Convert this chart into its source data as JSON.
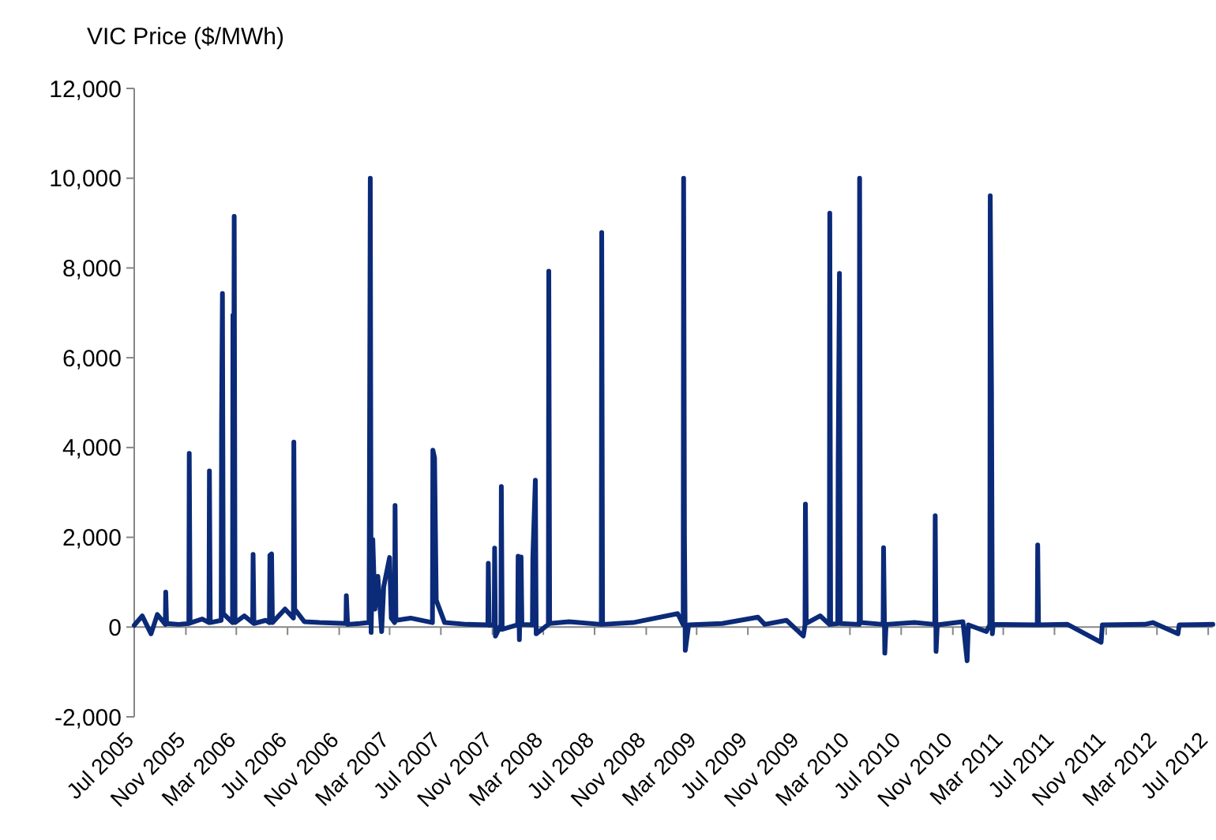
{
  "chart_data": {
    "type": "line",
    "ylabel": "VIC Price ($/MWh)",
    "xlim": [
      "2005-07-01",
      "2012-07-12"
    ],
    "xticks": [
      {
        "value": "2005-07",
        "label": "Jul 2005"
      },
      {
        "value": "2005-11",
        "label": "Nov 2005"
      },
      {
        "value": "2006-03",
        "label": "Mar 2006"
      },
      {
        "value": "2006-07",
        "label": "Jul 2006"
      },
      {
        "value": "2006-11",
        "label": "Nov 2006"
      },
      {
        "value": "2007-03",
        "label": "Mar 2007"
      },
      {
        "value": "2007-07",
        "label": "Jul 2007"
      },
      {
        "value": "2007-11",
        "label": "Nov 2007"
      },
      {
        "value": "2008-03",
        "label": "Mar 2008"
      },
      {
        "value": "2008-07",
        "label": "Jul 2008"
      },
      {
        "value": "2008-11",
        "label": "Nov 2008"
      },
      {
        "value": "2009-03",
        "label": "Mar 2009"
      },
      {
        "value": "2009-07",
        "label": "Jul 2009"
      },
      {
        "value": "2009-11",
        "label": "Nov 2009"
      },
      {
        "value": "2010-03",
        "label": "Mar 2010"
      },
      {
        "value": "2010-07",
        "label": "Jul 2010"
      },
      {
        "value": "2010-11",
        "label": "Nov 2010"
      },
      {
        "value": "2011-03",
        "label": "Mar 2011"
      },
      {
        "value": "2011-07",
        "label": "Jul 2011"
      },
      {
        "value": "2011-11",
        "label": "Nov 2011"
      },
      {
        "value": "2012-03",
        "label": "Mar 2012"
      },
      {
        "value": "2012-07",
        "label": "Jul 2012"
      }
    ],
    "ylim": [
      -2000,
      12000
    ],
    "yticks": [
      {
        "value": -2000,
        "label": "-2,000"
      },
      0,
      {
        "value": 2000,
        "label": "2,000"
      },
      {
        "value": 4000,
        "label": "4,000"
      },
      {
        "value": 6000,
        "label": "6,000"
      },
      {
        "value": 8000,
        "label": "8,000"
      },
      {
        "value": 10000,
        "label": "10,000"
      },
      {
        "value": 12000,
        "label": "12,000"
      }
    ],
    "marker": "none",
    "line_style": "solid",
    "series": [
      {
        "color": "#0b2a78",
        "x": [
          "2005-07-01",
          "2005-07-20",
          "2005-08-10",
          "2005-08-25",
          "2005-09-13",
          "2005-09-14",
          "2005-09-16",
          "2005-10-15",
          "2005-11-08",
          "2005-11-09",
          "2005-11-11",
          "2005-12-10",
          "2005-12-26",
          "2005-12-27",
          "2005-12-29",
          "2006-01-24",
          "2006-01-25",
          "2006-01-27",
          "2006-01-29",
          "2006-02-20",
          "2006-02-21",
          "2006-02-22",
          "2006-02-24",
          "2006-02-26",
          "2006-03-20",
          "2006-04-09",
          "2006-04-10",
          "2006-04-12",
          "2006-05-10",
          "2006-05-19",
          "2006-05-20",
          "2006-05-24",
          "2006-05-26",
          "2006-06-25",
          "2006-07-15",
          "2006-07-16",
          "2006-07-18",
          "2006-08-10",
          "2006-09-15",
          "2006-11-17",
          "2006-11-18",
          "2006-11-21",
          "2006-12-20",
          "2007-01-11",
          "2007-01-12",
          "2007-01-14",
          "2007-01-16",
          "2007-01-20",
          "2007-01-25",
          "2007-02-01",
          "2007-02-10",
          "2007-02-15",
          "2007-03-01",
          "2007-03-05",
          "2007-03-13",
          "2007-03-14",
          "2007-03-16",
          "2007-04-20",
          "2007-06-11",
          "2007-06-12",
          "2007-06-16",
          "2007-06-20",
          "2007-07-10",
          "2007-09-01",
          "2007-10-21",
          "2007-10-22",
          "2007-10-24",
          "2007-11-05",
          "2007-11-06",
          "2007-11-08",
          "2007-11-21",
          "2007-11-22",
          "2007-11-24",
          "2007-12-31",
          "2008-01-01",
          "2008-01-04",
          "2008-01-08",
          "2008-01-10",
          "2008-02-04",
          "2008-02-05",
          "2008-02-11",
          "2008-02-13",
          "2008-03-13",
          "2008-03-14",
          "2008-03-16",
          "2008-05-01",
          "2008-07-17",
          "2008-07-18",
          "2008-07-20",
          "2008-10-01",
          "2009-01-15",
          "2009-01-28",
          "2009-01-29",
          "2009-01-31",
          "2009-02-02",
          "2009-02-10",
          "2009-05-01",
          "2009-07-25",
          "2009-08-10",
          "2009-10-01",
          "2009-11-10",
          "2009-11-14",
          "2009-11-15",
          "2009-11-17",
          "2009-12-20",
          "2010-01-11",
          "2010-01-12",
          "2010-01-14",
          "2010-01-31",
          "2010-02-01",
          "2010-02-04",
          "2010-02-06",
          "2010-03-23",
          "2010-03-24",
          "2010-03-26",
          "2010-05-19",
          "2010-05-20",
          "2010-05-23",
          "2010-05-26",
          "2010-08-01",
          "2010-09-19",
          "2010-09-20",
          "2010-09-22",
          "2010-09-25",
          "2010-11-25",
          "2010-12-05",
          "2010-12-08",
          "2011-01-20",
          "2011-01-28",
          "2011-01-29",
          "2011-02-01",
          "2011-02-03",
          "2011-02-05",
          "2011-05-21",
          "2011-05-22",
          "2011-05-24",
          "2011-08-01",
          "2011-10-20",
          "2011-10-23",
          "2012-02-01",
          "2012-02-20",
          "2012-04-20",
          "2012-04-23",
          "2012-07-12"
        ],
        "values": [
          40,
          250,
          -150,
          280,
          60,
          780,
          80,
          60,
          80,
          3870,
          90,
          180,
          100,
          3480,
          100,
          150,
          4540,
          7430,
          300,
          100,
          6950,
          150,
          9150,
          100,
          250,
          100,
          1620,
          80,
          150,
          100,
          1600,
          1630,
          100,
          400,
          200,
          4120,
          400,
          120,
          100,
          80,
          700,
          60,
          80,
          100,
          3150,
          10000,
          -120,
          1950,
          400,
          1130,
          -100,
          900,
          1550,
          200,
          100,
          2710,
          150,
          200,
          100,
          3940,
          3770,
          600,
          100,
          60,
          50,
          1420,
          40,
          50,
          1760,
          -200,
          50,
          3130,
          -50,
          50,
          1580,
          -280,
          1560,
          60,
          50,
          1540,
          3270,
          -150,
          60,
          7930,
          80,
          120,
          60,
          8790,
          60,
          100,
          300,
          50,
          10000,
          2000,
          -520,
          50,
          80,
          220,
          60,
          150,
          -200,
          50,
          2740,
          80,
          250,
          60,
          9220,
          60,
          80,
          3620,
          7880,
          80,
          60,
          10000,
          100,
          60,
          1770,
          -580,
          60,
          100,
          60,
          2480,
          -540,
          50,
          120,
          -750,
          50,
          -100,
          50,
          9610,
          5290,
          -150,
          60,
          50,
          1830,
          50,
          60,
          -340,
          50,
          60,
          100,
          -150,
          50,
          60
        ]
      }
    ]
  }
}
